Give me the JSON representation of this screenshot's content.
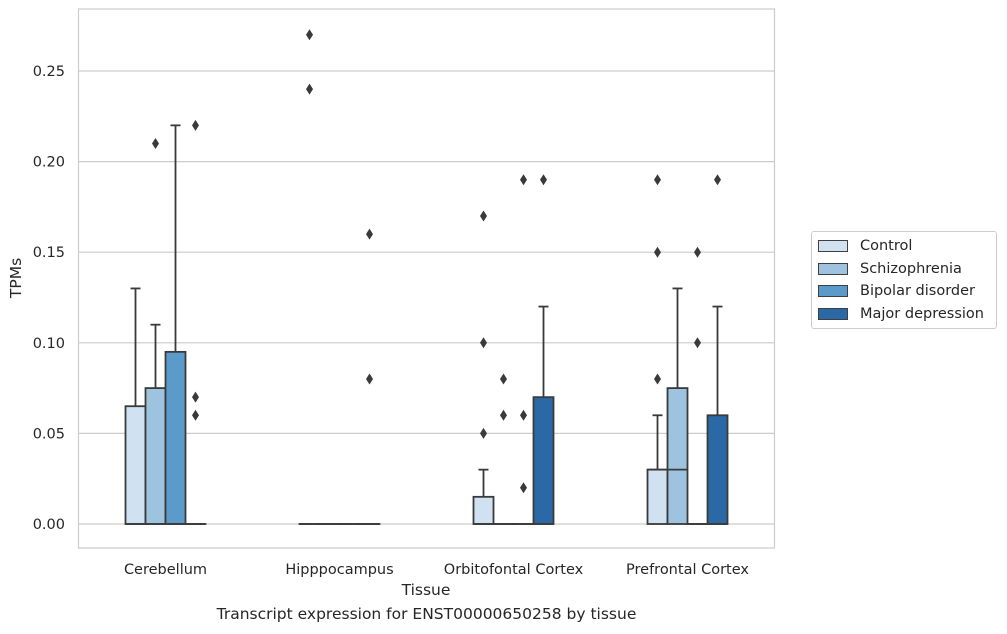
{
  "chart_data": {
    "type": "box",
    "title": "",
    "xlabel": "Tissue",
    "ylabel": "TPMs",
    "caption": "Transcript expression for ENST00000650258 by tissue",
    "ylim": [
      -0.013,
      0.284
    ],
    "yticks": [
      "0.00",
      "0.05",
      "0.10",
      "0.15",
      "0.20",
      "0.25"
    ],
    "categories": [
      "Cerebellum",
      "Hipppocampus",
      "Orbitofontal Cortex",
      "Prefrontal Cortex"
    ],
    "grid": true,
    "legend_position": "right",
    "series": [
      {
        "name": "Control",
        "color": "#d0e1f2",
        "boxes": [
          {
            "q1": 0,
            "median": 0,
            "q3": 0.065,
            "whisker_low": 0,
            "whisker_high": 0.13,
            "outliers": []
          },
          {
            "q1": 0,
            "median": 0,
            "q3": 0,
            "whisker_low": 0,
            "whisker_high": 0,
            "outliers": [
              0.24,
              0.27
            ]
          },
          {
            "q1": 0,
            "median": 0,
            "q3": 0.015,
            "whisker_low": 0,
            "whisker_high": 0.03,
            "outliers": [
              0.05,
              0.1,
              0.17
            ]
          },
          {
            "q1": 0,
            "median": 0.03,
            "q3": 0.03,
            "whisker_low": 0,
            "whisker_high": 0.06,
            "outliers": [
              0.08,
              0.15,
              0.19
            ]
          }
        ]
      },
      {
        "name": "Schizophrenia",
        "color": "#9dc3de",
        "boxes": [
          {
            "q1": 0,
            "median": 0,
            "q3": 0.075,
            "whisker_low": 0,
            "whisker_high": 0.11,
            "outliers": [
              0.21
            ]
          },
          {
            "q1": 0,
            "median": 0,
            "q3": 0,
            "whisker_low": 0,
            "whisker_high": 0,
            "outliers": []
          },
          {
            "q1": 0,
            "median": 0,
            "q3": 0,
            "whisker_low": 0,
            "whisker_high": 0,
            "outliers": [
              0.06,
              0.08
            ]
          },
          {
            "q1": 0,
            "median": 0.03,
            "q3": 0.075,
            "whisker_low": 0,
            "whisker_high": 0.13,
            "outliers": []
          }
        ]
      },
      {
        "name": "Bipolar disorder",
        "color": "#5b9bc9",
        "boxes": [
          {
            "q1": 0,
            "median": 0,
            "q3": 0.095,
            "whisker_low": 0,
            "whisker_high": 0.22,
            "outliers": []
          },
          {
            "q1": 0,
            "median": 0,
            "q3": 0,
            "whisker_low": 0,
            "whisker_high": 0,
            "outliers": []
          },
          {
            "q1": 0,
            "median": 0,
            "q3": 0,
            "whisker_low": 0,
            "whisker_high": 0,
            "outliers": [
              0.02,
              0.06,
              0.19
            ]
          },
          {
            "q1": 0,
            "median": 0,
            "q3": 0,
            "whisker_low": 0,
            "whisker_high": 0,
            "outliers": [
              0.1,
              0.15
            ]
          }
        ]
      },
      {
        "name": "Major depression",
        "color": "#2a68a6",
        "boxes": [
          {
            "q1": 0,
            "median": 0,
            "q3": 0,
            "whisker_low": 0,
            "whisker_high": 0,
            "outliers": [
              0.06,
              0.07,
              0.22
            ]
          },
          {
            "q1": 0,
            "median": 0,
            "q3": 0,
            "whisker_low": 0,
            "whisker_high": 0,
            "outliers": [
              0.08,
              0.16
            ]
          },
          {
            "q1": 0,
            "median": 0,
            "q3": 0.07,
            "whisker_low": 0,
            "whisker_high": 0.12,
            "outliers": [
              0.19
            ]
          },
          {
            "q1": 0,
            "median": 0,
            "q3": 0.06,
            "whisker_low": 0,
            "whisker_high": 0.12,
            "outliers": [
              0.19
            ]
          }
        ]
      }
    ]
  }
}
